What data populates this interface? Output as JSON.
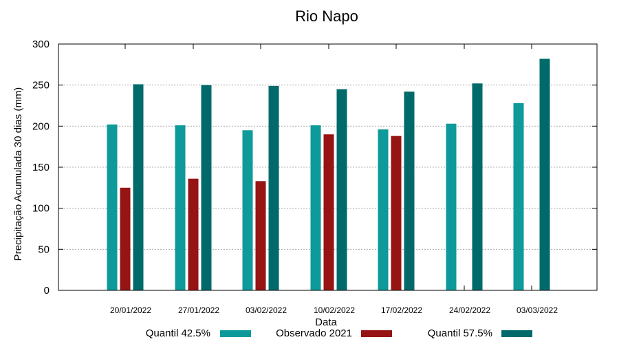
{
  "chart_data": {
    "type": "bar",
    "title": "Rio Napo",
    "xlabel": "Data",
    "ylabel": "Precipitação Acumulada 30 dias (mm)",
    "ylim": [
      0,
      300
    ],
    "yticks": [
      0,
      50,
      100,
      150,
      200,
      250,
      300
    ],
    "grid": true,
    "legend_position": "bottom",
    "categories": [
      "20/01/2022",
      "27/01/2022",
      "03/02/2022",
      "10/02/2022",
      "17/02/2022",
      "24/02/2022",
      "03/03/2022"
    ],
    "series": [
      {
        "name": "Quantil 42.5%",
        "color": "#0e9a9a",
        "values": [
          202,
          201,
          195,
          201,
          196,
          203,
          228
        ]
      },
      {
        "name": "Observado 2021",
        "color": "#961414",
        "values": [
          125,
          136,
          133,
          190,
          188,
          null,
          null
        ]
      },
      {
        "name": "Quantil 57.5%",
        "color": "#006a6a",
        "values": [
          251,
          250,
          249,
          245,
          242,
          252,
          282
        ]
      }
    ]
  }
}
